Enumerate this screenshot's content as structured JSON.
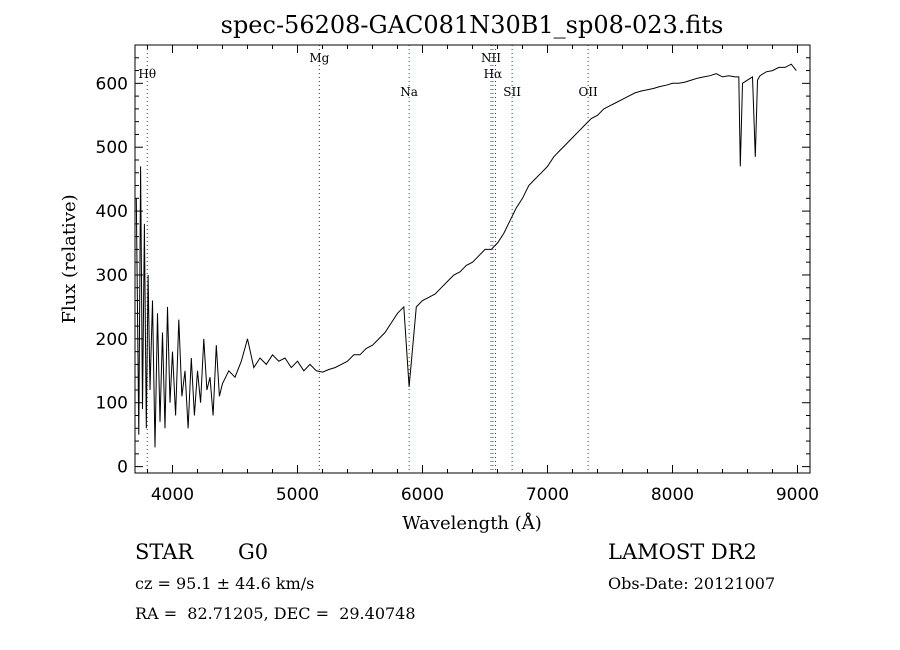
{
  "chart_data": {
    "type": "line",
    "title": "spec-56208-GAC081N30B1_sp08-023.fits",
    "xlabel": "Wavelength (Å)",
    "ylabel": "Flux (relative)",
    "xlim": [
      3700,
      9100
    ],
    "ylim": [
      -10,
      660
    ],
    "xticks": [
      4000,
      5000,
      6000,
      7000,
      8000,
      9000
    ],
    "yticks": [
      0,
      100,
      200,
      300,
      400,
      500,
      600
    ],
    "grid": false,
    "line_color": "#000000",
    "marker_color": "#cc0000",
    "spectral_lines": [
      {
        "name": "Hθ",
        "x": 3798
      },
      {
        "name": "Mg",
        "x": 5175
      },
      {
        "name": "Na",
        "x": 5893
      },
      {
        "name": "NII",
        "x": 6548
      },
      {
        "name": "Hα",
        "x": 6563
      },
      {
        "name": "NII",
        "x": 6584
      },
      {
        "name": "SII",
        "x": 6717
      },
      {
        "name": "OII",
        "x": 7325
      }
    ],
    "series": [
      {
        "x": [
          3710,
          3730,
          3745,
          3760,
          3775,
          3790,
          3805,
          3820,
          3840,
          3860,
          3880,
          3900,
          3920,
          3940,
          3960,
          3980,
          4000,
          4025,
          4050,
          4075,
          4100,
          4125,
          4150,
          4175,
          4200,
          4225,
          4250,
          4275,
          4300,
          4325,
          4350,
          4375,
          4400,
          4450,
          4500,
          4550,
          4600,
          4650,
          4700,
          4750,
          4800,
          4850,
          4900,
          4950,
          5000,
          5050,
          5100,
          5150,
          5200,
          5250,
          5300,
          5350,
          5400,
          5450,
          5500,
          5550,
          5600,
          5650,
          5700,
          5750,
          5800,
          5850,
          5893,
          5950,
          6000,
          6050,
          6100,
          6150,
          6200,
          6250,
          6300,
          6350,
          6400,
          6450,
          6500,
          6550,
          6600,
          6650,
          6700,
          6750,
          6800,
          6850,
          6900,
          6950,
          7000,
          7050,
          7100,
          7150,
          7200,
          7250,
          7300,
          7350,
          7400,
          7450,
          7500,
          7550,
          7600,
          7650,
          7700,
          7750,
          7800,
          7850,
          7900,
          7950,
          8000,
          8050,
          8100,
          8150,
          8200,
          8250,
          8300,
          8350,
          8400,
          8450,
          8500,
          8530,
          8542,
          8560,
          8600,
          8640,
          8662,
          8680,
          8700,
          8750,
          8800,
          8850,
          8900,
          8950,
          8990
        ],
        "y": [
          420,
          50,
          470,
          90,
          380,
          60,
          300,
          120,
          260,
          30,
          240,
          70,
          210,
          60,
          250,
          100,
          180,
          80,
          230,
          110,
          150,
          60,
          170,
          80,
          150,
          100,
          200,
          120,
          140,
          80,
          190,
          110,
          130,
          150,
          140,
          165,
          200,
          155,
          170,
          160,
          175,
          165,
          170,
          155,
          165,
          150,
          160,
          150,
          148,
          152,
          155,
          160,
          165,
          175,
          175,
          185,
          190,
          200,
          210,
          225,
          240,
          250,
          125,
          250,
          260,
          265,
          270,
          280,
          290,
          300,
          305,
          315,
          320,
          330,
          340,
          340,
          350,
          365,
          385,
          405,
          420,
          440,
          450,
          460,
          470,
          485,
          495,
          505,
          515,
          525,
          535,
          545,
          550,
          560,
          565,
          570,
          575,
          580,
          585,
          588,
          590,
          592,
          595,
          597,
          600,
          600,
          602,
          605,
          608,
          610,
          612,
          615,
          610,
          612,
          610,
          610,
          470,
          600,
          605,
          610,
          485,
          605,
          612,
          618,
          620,
          625,
          625,
          630,
          620
        ]
      }
    ]
  },
  "info": {
    "object_class": "STAR",
    "subclass": "G0",
    "cz": "cz = 95.1 ± 44.6 km/s",
    "coords": "RA =  82.71205, DEC =  29.40748",
    "survey": "LAMOST DR2",
    "obs_date": "Obs-Date: 20121007"
  }
}
